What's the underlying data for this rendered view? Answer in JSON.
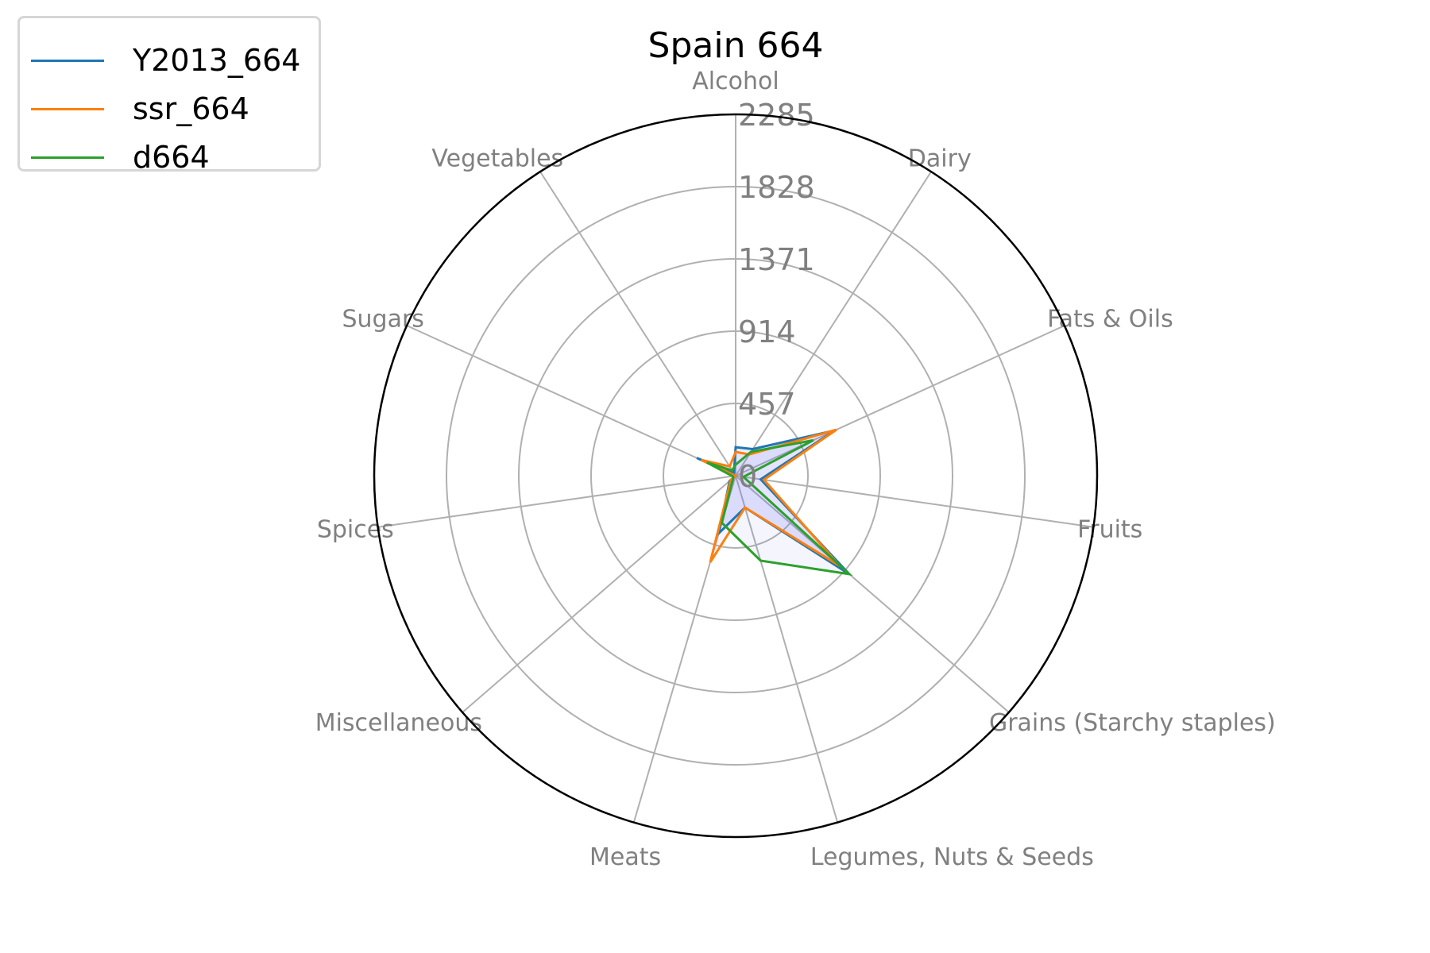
{
  "chart_data": {
    "type": "radar",
    "title": "Spain 664",
    "categories": [
      "Alcohol",
      "Dairy",
      "Fats & Oils",
      "Fruits",
      "Grains (Starchy staples)",
      "Legumes, Nuts & Seeds",
      "Meats",
      "Miscellaneous",
      "Spices",
      "Sugars",
      "Vegetables"
    ],
    "rticks": [
      "0",
      "457",
      "914",
      "1371",
      "1828",
      "2285"
    ],
    "rmax": 2285,
    "legend_position": "upper-left",
    "grid": true,
    "fill_color": "#6b6bf0",
    "series": [
      {
        "name": "Y2013_664",
        "color": "#1f77b4",
        "values": [
          180,
          200,
          690,
          160,
          950,
          210,
          380,
          50,
          0,
          270,
          20
        ]
      },
      {
        "name": "ssr_664",
        "color": "#ff7f0e",
        "values": [
          150,
          160,
          700,
          180,
          870,
          210,
          570,
          40,
          0,
          240,
          70
        ]
      },
      {
        "name": "d664",
        "color": "#2ca02c",
        "values": [
          70,
          180,
          540,
          50,
          950,
          560,
          310,
          20,
          20,
          200,
          40
        ]
      }
    ]
  }
}
